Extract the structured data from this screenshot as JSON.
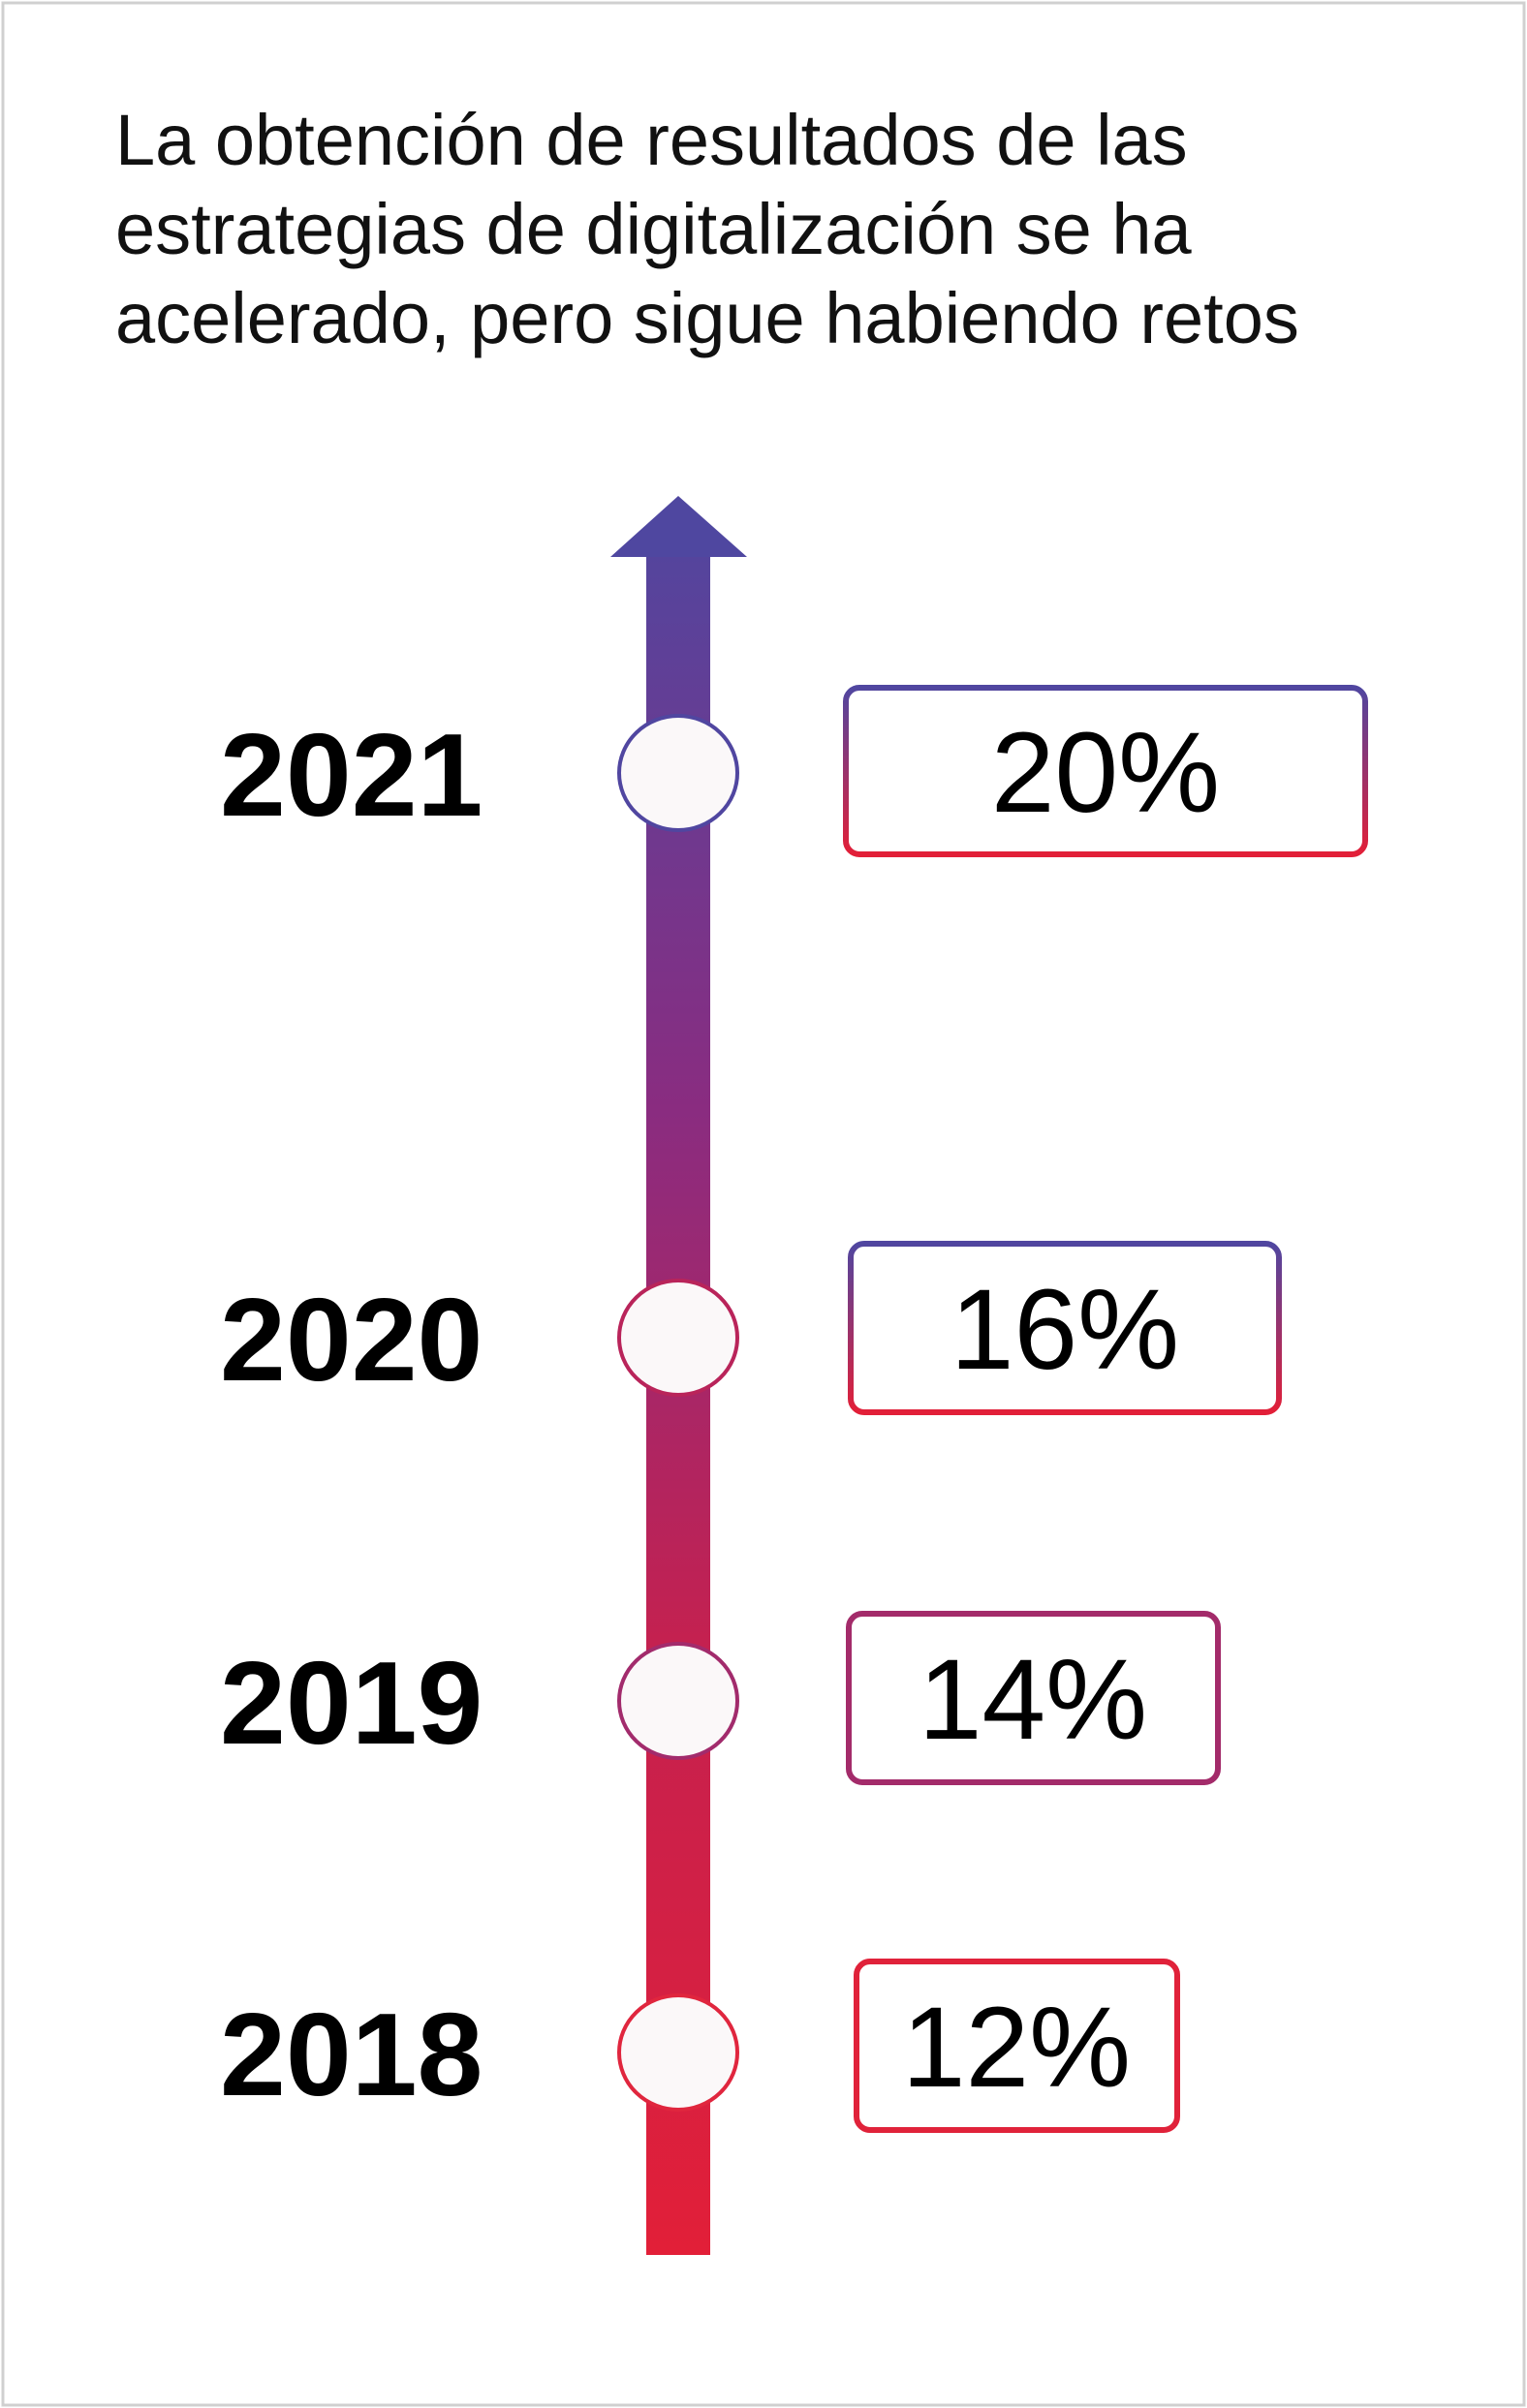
{
  "title_lines": [
    "La obtención de resultados de las",
    "estrategias de digitalización se ha",
    "acelerado, pero sigue habiendo retos"
  ],
  "colors": {
    "top": "#4f47a0",
    "bottom": "#e21f38",
    "circle_fill": "#fbf8f9",
    "frame": "#cfcfcf"
  },
  "timeline": [
    {
      "year": "2021",
      "value": "20%"
    },
    {
      "year": "2020",
      "value": "16%"
    },
    {
      "year": "2019",
      "value": "14%"
    },
    {
      "year": "2018",
      "value": "12%"
    }
  ]
}
